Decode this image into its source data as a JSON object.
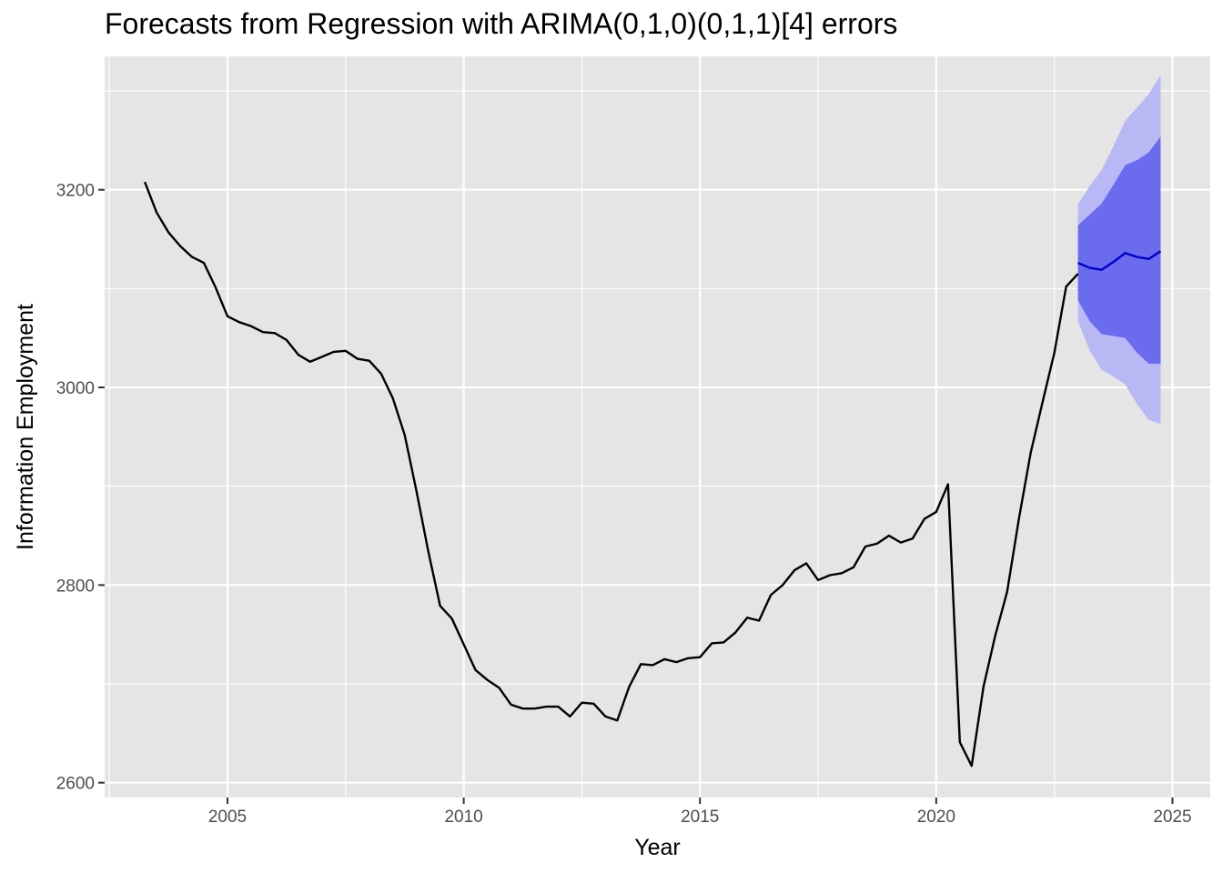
{
  "chart_data": {
    "type": "line",
    "title": "Forecasts from Regression with ARIMA(0,1,0)(0,1,1)[4] errors",
    "xlabel": "Year",
    "ylabel": "Information Employment",
    "xlim": [
      2002.4,
      2025.8
    ],
    "ylim": [
      2585,
      3335
    ],
    "x_ticks": [
      2005,
      2010,
      2015,
      2020,
      2025
    ],
    "y_ticks": [
      2600,
      2800,
      3000,
      3200
    ],
    "grid": true,
    "colors": {
      "panel_bg": "#e5e5e5",
      "grid": "#ffffff",
      "history_line": "#000000",
      "forecast_line": "#0000cc",
      "band_80": "#6b6bed",
      "band_95": "#b8b8f5"
    },
    "series": [
      {
        "start": 2003.25,
        "step": 0.25,
        "values": [
          3208,
          3177,
          3157,
          3143,
          3132,
          3126,
          3101,
          3072,
          3066,
          3062,
          3056,
          3055,
          3048,
          3033,
          3026,
          3031,
          3036,
          3037,
          3029,
          3027,
          3014,
          2989,
          2952,
          2895,
          2834,
          2779,
          2766,
          2740,
          2714,
          2704,
          2696,
          2679,
          2675,
          2675,
          2677,
          2677,
          2667,
          2681,
          2680,
          2667,
          2663,
          2697,
          2720,
          2719,
          2725,
          2722,
          2726,
          2727,
          2741,
          2742,
          2752,
          2767,
          2764,
          2790,
          2800,
          2815,
          2822,
          2805,
          2810,
          2812,
          2818,
          2839,
          2842,
          2850,
          2843,
          2847,
          2867,
          2874,
          2902,
          2641,
          2617,
          2697,
          2749,
          2793,
          2867,
          2934,
          2985,
          3035,
          3102,
          3115
        ]
      },
      {
        "name": "forecast",
        "start": 2023.0,
        "step": 0.25,
        "values": [
          3126,
          3121,
          3119,
          3127,
          3136,
          3132,
          3130,
          3138
        ],
        "lo80": [
          3088,
          3067,
          3054,
          3052,
          3050,
          3035,
          3024,
          3024
        ],
        "hi80": [
          3164,
          3175,
          3186,
          3205,
          3225,
          3230,
          3238,
          3254
        ],
        "lo95": [
          3067,
          3037,
          3018,
          3011,
          3003,
          2983,
          2967,
          2963
        ],
        "hi95": [
          3185,
          3204,
          3220,
          3244,
          3270,
          3283,
          3297,
          3316
        ]
      }
    ]
  }
}
